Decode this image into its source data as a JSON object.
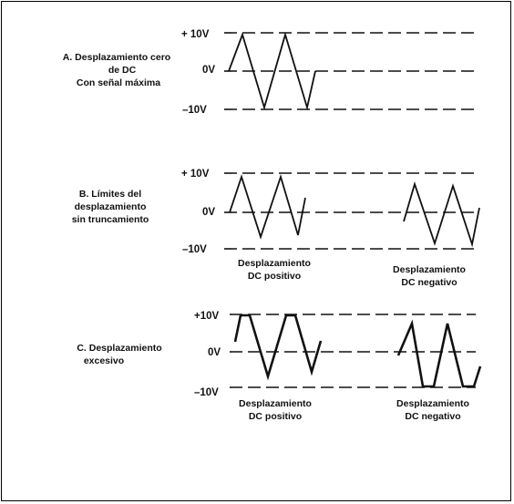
{
  "section_a": {
    "label_lines": [
      "A.  Desplazamiento cero",
      "de DC",
      "Con señal máxima"
    ],
    "v_top": "+ 10V",
    "v_mid": "0V",
    "v_bot": "–10V"
  },
  "section_b": {
    "label_lines": [
      "B.  Límites del",
      "desplazamiento",
      "sin truncamiento"
    ],
    "v_top": "+ 10V",
    "v_mid": "0V",
    "v_bot": "–10V",
    "caption_left": [
      "Desplazamiento",
      "DC positivo"
    ],
    "caption_right": [
      "Desplazamiento",
      "DC negativo"
    ]
  },
  "section_c": {
    "label_lines": [
      "C.  Desplazamiento",
      "excesivo"
    ],
    "v_top": "+10V",
    "v_mid": "0V",
    "v_bot": "–10V",
    "caption_left": [
      "Desplazamiento",
      "DC positivo"
    ],
    "caption_right": [
      "Desplazamiento",
      "DC negativo"
    ]
  }
}
